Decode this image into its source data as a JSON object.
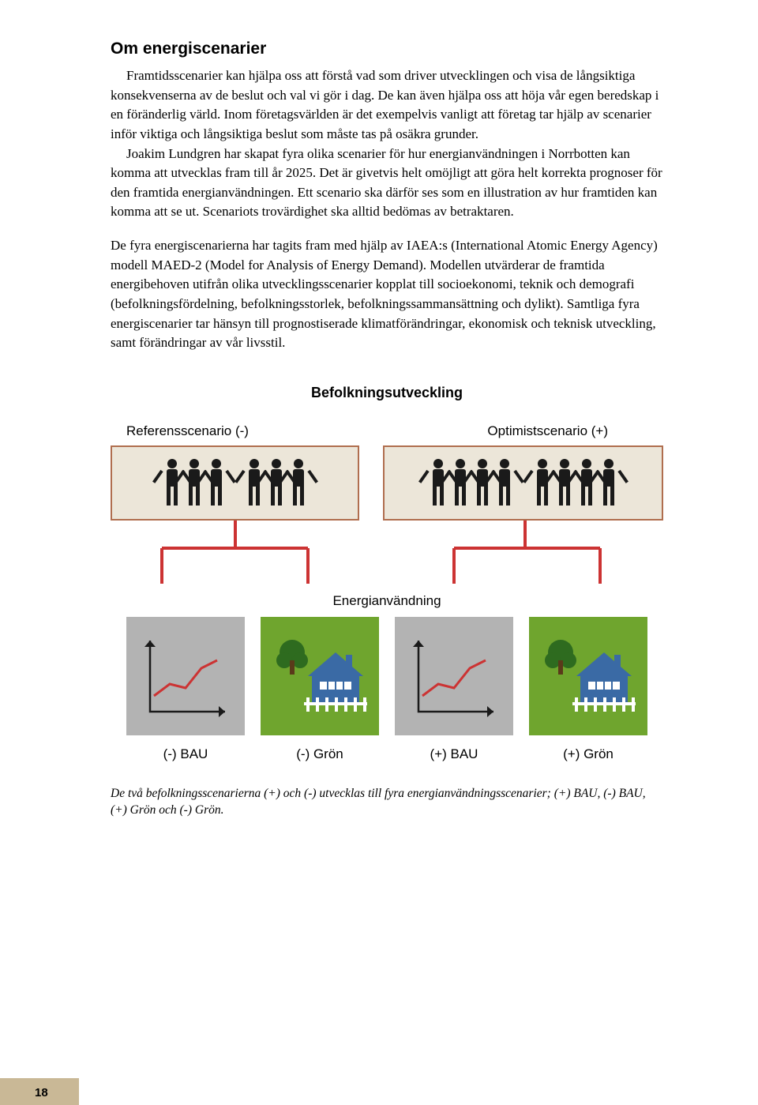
{
  "title": "Om energiscenarier",
  "para1": "Framtidsscenarier kan hjälpa oss att förstå vad som driver utvecklingen och visa de långsiktiga konsekvenserna av de beslut och val vi gör i dag. De kan även hjälpa oss att höja vår egen beredskap i en föränderlig värld. Inom företagsvärlden är det exempelvis vanligt att företag tar hjälp av scenarier inför viktiga och långsiktiga beslut som måste tas på osäkra grunder.",
  "para1b": "Joakim Lundgren har skapat fyra olika scenarier för hur energianvändningen i Norrbotten kan komma att utvecklas fram till år 2025. Det är givetvis helt omöjligt att göra helt korrekta prognoser för den framtida energianvändningen. Ett scenario ska därför ses som en illustration av hur framtiden kan komma att se ut. Scenariots trovärdighet ska alltid bedömas av betraktaren.",
  "para2": "De fyra energiscenarierna har tagits fram med hjälp av IAEA:s (International Atomic Energy Agency) modell MAED-2 (Model for Analysis of Energy Demand). Modellen utvärderar de framtida energibehoven utifrån olika utvecklingsscenarier kopplat till socioekonomi, teknik och demografi (befolkningsfördelning, befolkningsstorlek, befolkningssammansättning och dylikt). Samtliga fyra energiscenarier tar hänsyn till prognostiserade klimatförändringar, ekonomisk och teknisk utveckling, samt förändringar av vår livsstil.",
  "diagram": {
    "befolkning_title": "Befolkningsutveckling",
    "ref_label": "Referensscenario (-)",
    "opt_label": "Optimistscenario (+)",
    "energi_title": "Energianvändning",
    "tiles": [
      {
        "label": "(-) BAU"
      },
      {
        "label": "(-) Grön"
      },
      {
        "label": "(+) BAU"
      },
      {
        "label": "(+) Grön"
      }
    ],
    "box_bg": "#ece6d9",
    "box_border": "#b06e4f",
    "connector_color": "#cc3333",
    "bau_bg": "#b3b3b3",
    "green_bg": "#6fa52e"
  },
  "caption": "De två befolkningsscenarierna (+) och (-) utvecklas till fyra energianvändningsscenarier; (+) BAU, (-) BAU, (+) Grön och (-) Grön.",
  "page_number": "18"
}
